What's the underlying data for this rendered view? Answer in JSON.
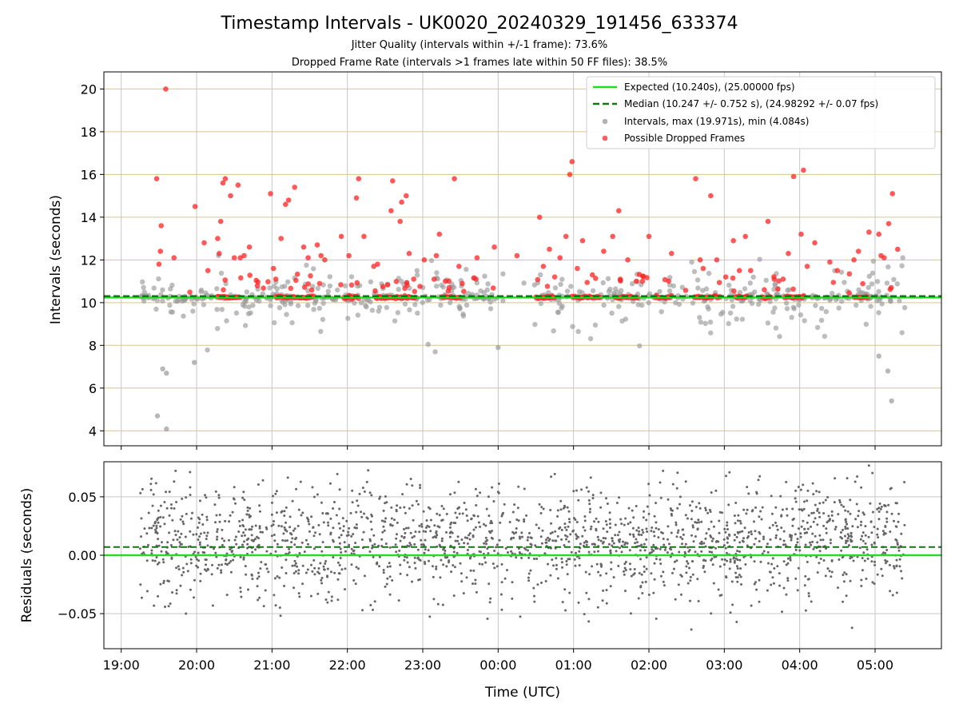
{
  "chart_data": {
    "type": "scatter",
    "title": "Timestamp Intervals - UK0020_20240329_191456_633374",
    "subtitles": [
      "Jitter Quality (intervals within +/-1 frame): 73.6%",
      "Dropped Frame Rate (intervals >1 frames late within 50 FF files): 38.5%"
    ],
    "xlabel": "Time (UTC)",
    "x_ticks": [
      "19:00",
      "20:00",
      "21:00",
      "22:00",
      "23:00",
      "00:00",
      "01:00",
      "02:00",
      "03:00",
      "04:00",
      "05:00"
    ],
    "x_range_hours": [
      18.77,
      29.88
    ],
    "data_time_range_hours": [
      19.25,
      29.4
    ],
    "legend_position": "upper-right",
    "top_panel": {
      "ylabel": "Intervals (seconds)",
      "ylim": [
        3.3,
        20.8
      ],
      "y_ticks": [
        4,
        6,
        8,
        10,
        12,
        14,
        16,
        18,
        20
      ],
      "grid": true,
      "expected_interval": 10.24,
      "median_interval": 10.247,
      "series": [
        {
          "name": "Expected (10.240s), (25.00000 fps)",
          "kind": "line",
          "color": "#22dd22"
        },
        {
          "name": "Median (10.247 +/- 0.752 s), (24.98292 +/- 0.07 fps)",
          "kind": "dashed-line",
          "color": "#117711"
        },
        {
          "name": "Intervals, max (19.971s), min (4.084s)",
          "kind": "points",
          "color": "#999999",
          "max": 19.971,
          "min": 4.084
        },
        {
          "name": "Possible Dropped Frames",
          "kind": "points",
          "color": "#ff3333"
        }
      ],
      "dropped_frame_points": [
        [
          19.47,
          15.8
        ],
        [
          19.53,
          13.6
        ],
        [
          19.52,
          12.4
        ],
        [
          19.5,
          11.8
        ],
        [
          19.59,
          20.0
        ],
        [
          19.7,
          12.1
        ],
        [
          19.98,
          14.5
        ],
        [
          20.1,
          12.8
        ],
        [
          20.15,
          11.5
        ],
        [
          20.28,
          13.0
        ],
        [
          20.3,
          12.3
        ],
        [
          20.32,
          13.8
        ],
        [
          20.35,
          15.6
        ],
        [
          20.38,
          15.8
        ],
        [
          20.45,
          15.0
        ],
        [
          20.5,
          12.1
        ],
        [
          20.55,
          15.5
        ],
        [
          20.58,
          12.1
        ],
        [
          20.63,
          12.2
        ],
        [
          20.7,
          12.6
        ],
        [
          20.98,
          15.1
        ],
        [
          21.02,
          11.6
        ],
        [
          21.05,
          11.1
        ],
        [
          21.12,
          13.0
        ],
        [
          21.18,
          14.6
        ],
        [
          21.22,
          14.8
        ],
        [
          21.3,
          15.4
        ],
        [
          21.42,
          12.6
        ],
        [
          21.48,
          12.1
        ],
        [
          21.6,
          12.7
        ],
        [
          21.65,
          12.2
        ],
        [
          21.7,
          12.0
        ],
        [
          21.92,
          13.1
        ],
        [
          22.02,
          12.2
        ],
        [
          22.12,
          14.9
        ],
        [
          22.15,
          15.8
        ],
        [
          22.22,
          13.1
        ],
        [
          22.35,
          11.7
        ],
        [
          22.4,
          11.8
        ],
        [
          22.58,
          14.3
        ],
        [
          22.6,
          15.7
        ],
        [
          22.7,
          13.8
        ],
        [
          22.72,
          14.7
        ],
        [
          22.78,
          15.0
        ],
        [
          22.82,
          12.3
        ],
        [
          22.88,
          11.1
        ],
        [
          23.02,
          12.0
        ],
        [
          23.18,
          12.2
        ],
        [
          23.22,
          13.2
        ],
        [
          23.3,
          11.0
        ],
        [
          23.35,
          10.7
        ],
        [
          23.42,
          15.8
        ],
        [
          23.48,
          11.7
        ],
        [
          23.72,
          12.1
        ],
        [
          23.95,
          12.6
        ],
        [
          24.25,
          12.2
        ],
        [
          24.55,
          14.0
        ],
        [
          24.6,
          11.7
        ],
        [
          24.68,
          12.5
        ],
        [
          24.75,
          11.2
        ],
        [
          24.82,
          12.1
        ],
        [
          24.9,
          13.1
        ],
        [
          24.95,
          16.0
        ],
        [
          24.98,
          16.6
        ],
        [
          25.05,
          11.6
        ],
        [
          25.12,
          12.9
        ],
        [
          25.25,
          11.3
        ],
        [
          25.4,
          12.4
        ],
        [
          25.52,
          13.1
        ],
        [
          25.6,
          14.3
        ],
        [
          25.62,
          11.1
        ],
        [
          25.72,
          12.0
        ],
        [
          26.0,
          13.1
        ],
        [
          26.3,
          12.3
        ],
        [
          26.62,
          15.8
        ],
        [
          26.68,
          12.0
        ],
        [
          26.72,
          11.6
        ],
        [
          26.82,
          15.0
        ],
        [
          26.9,
          12.0
        ],
        [
          27.02,
          11.2
        ],
        [
          27.12,
          12.9
        ],
        [
          27.2,
          11.5
        ],
        [
          27.28,
          13.1
        ],
        [
          27.35,
          11.5
        ],
        [
          27.58,
          13.8
        ],
        [
          27.78,
          11.1
        ],
        [
          27.85,
          12.3
        ],
        [
          27.92,
          15.9
        ],
        [
          28.02,
          13.2
        ],
        [
          28.05,
          16.2
        ],
        [
          28.1,
          11.7
        ],
        [
          28.2,
          12.8
        ],
        [
          28.4,
          11.9
        ],
        [
          28.5,
          11.5
        ],
        [
          28.72,
          12.0
        ],
        [
          28.78,
          12.4
        ],
        [
          28.92,
          13.3
        ],
        [
          29.05,
          13.2
        ],
        [
          29.08,
          12.2
        ],
        [
          29.12,
          12.1
        ],
        [
          29.18,
          13.7
        ],
        [
          29.23,
          15.1
        ],
        [
          29.3,
          12.5
        ]
      ],
      "dropped_frame_band": {
        "y": 10.25,
        "segments": [
          [
            20.28,
            20.58
          ],
          [
            21.05,
            21.55
          ],
          [
            21.95,
            22.15
          ],
          [
            22.38,
            22.9
          ],
          [
            23.25,
            23.5
          ],
          [
            24.5,
            24.75
          ],
          [
            24.98,
            25.35
          ],
          [
            25.55,
            25.85
          ],
          [
            26.08,
            26.3
          ],
          [
            26.6,
            26.95
          ],
          [
            27.15,
            27.3
          ],
          [
            27.5,
            27.62
          ],
          [
            27.8,
            28.05
          ],
          [
            28.72,
            28.9
          ]
        ]
      }
    },
    "bottom_panel": {
      "ylabel": "Residuals (seconds)",
      "ylim": [
        -0.08,
        0.08
      ],
      "y_ticks": [
        0.05,
        0.0,
        -0.05
      ],
      "y_tick_labels": [
        "0.05",
        "0.00",
        "−0.05"
      ],
      "grid": true,
      "zero_line": 0.0,
      "median_offset": 0.007,
      "point_color": "#666666"
    }
  }
}
